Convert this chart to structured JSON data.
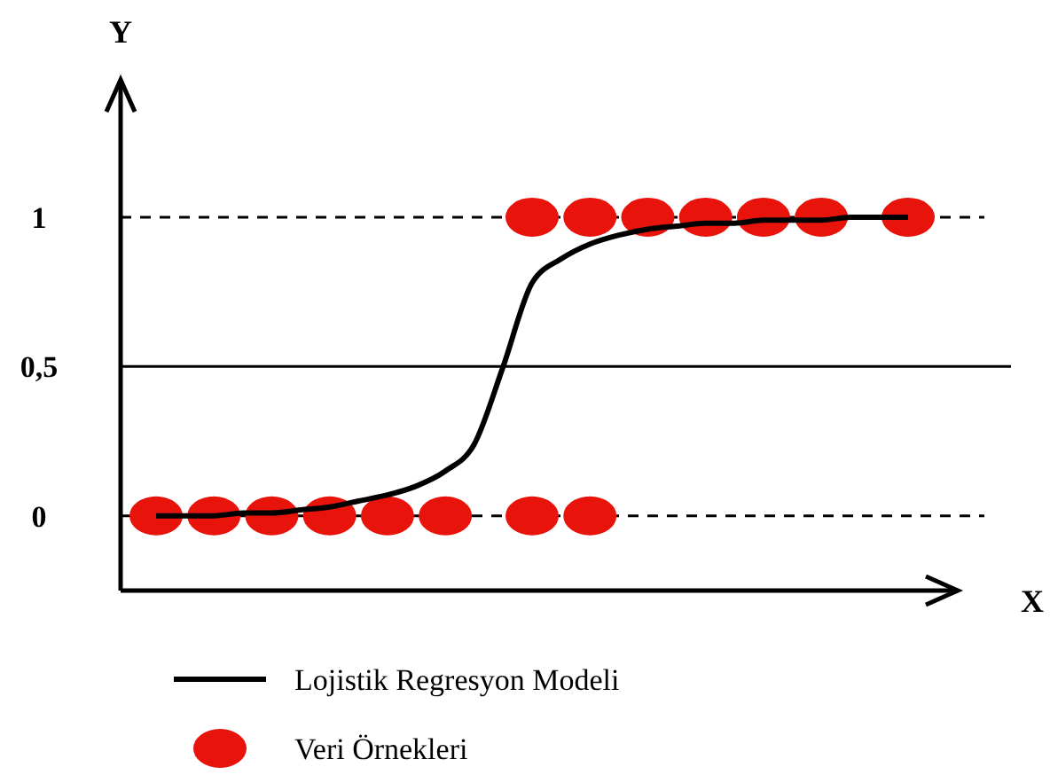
{
  "chart_data": {
    "type": "scatter",
    "xlabel": "X",
    "ylabel": "Y",
    "categories": [
      null,
      null,
      null,
      null,
      null,
      null,
      null,
      null,
      null,
      null,
      null,
      null,
      null,
      null,
      null,
      null,
      null,
      null,
      null,
      null,
      null,
      null,
      null,
      null,
      null,
      null,
      null
    ],
    "series": [
      {
        "name": "Lojistik Regresyon Modeli",
        "type": "line",
        "color": "#000000",
        "line_style": "solid",
        "marker": "none",
        "values": [
          0,
          0,
          0,
          0.01,
          0.01,
          0.02,
          0.03,
          0.05,
          0.07,
          0.1,
          0.15,
          0.24,
          0.5,
          0.78,
          0.86,
          0.91,
          0.94,
          0.96,
          0.97,
          0.98,
          0.98,
          0.99,
          0.99,
          0.99,
          1,
          1,
          1
        ]
      },
      {
        "name": "Veri Örnekleri",
        "color": "#e8140c",
        "marker": "circle",
        "values": [
          0,
          null,
          0,
          null,
          0,
          null,
          0,
          null,
          0,
          null,
          0,
          null,
          null,
          0,
          null,
          0,
          null,
          null,
          null,
          null,
          null,
          null,
          null,
          null,
          null,
          null,
          null
        ]
      },
      {
        "color": "#e8140c",
        "marker": "circle",
        "values": [
          null,
          null,
          null,
          null,
          null,
          null,
          null,
          null,
          null,
          null,
          null,
          null,
          null,
          1,
          null,
          1,
          null,
          1,
          null,
          1,
          null,
          1,
          null,
          1,
          null,
          null,
          1
        ]
      }
    ],
    "ylim": [
      -0.25,
      1.46
    ],
    "yticks": [
      0,
      {
        "value": 0.5,
        "label": "0,5"
      },
      1
    ],
    "ref_lines": [
      {
        "axis": "y",
        "value": 0,
        "line_style": "dashed",
        "color": "#000000"
      },
      {
        "axis": "y",
        "value": 0.5,
        "line_style": "solid",
        "color": "#000000"
      },
      {
        "axis": "y",
        "value": 1,
        "line_style": "dashed",
        "color": "#000000"
      }
    ],
    "grid": false,
    "legend": "bottom",
    "tick_labels": "y"
  }
}
